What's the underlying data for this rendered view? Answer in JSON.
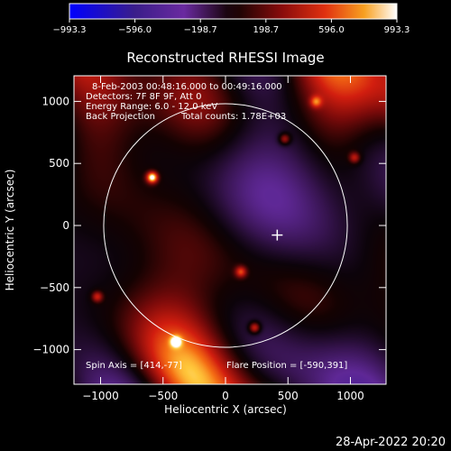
{
  "chart_data": {
    "type": "heatmap",
    "title": "Reconstructed RHESSI Image",
    "xlabel": "Heliocentric X (arcsec)",
    "ylabel": "Heliocentric Y (arcsec)",
    "xlim": [
      -1300,
      1300
    ],
    "ylim": [
      -1300,
      1300
    ],
    "x_ticks": [
      -1000,
      -500,
      0,
      500,
      1000
    ],
    "x_tick_labels": [
      "−1000",
      "−500",
      "0",
      "500",
      "1000"
    ],
    "y_ticks": [
      -1000,
      -500,
      0,
      500,
      1000
    ],
    "y_tick_labels": [
      "−1000",
      "−500",
      "0",
      "500",
      "1000"
    ],
    "colorbar": {
      "range": [
        -993.3,
        993.3
      ],
      "tick_values": [
        -993.3,
        -596.0,
        -198.7,
        198.7,
        596.0,
        993.3
      ],
      "tick_labels": [
        "−993.3",
        "−596.0",
        "−198.7",
        "198.7",
        "596.0",
        "993.3"
      ]
    },
    "annotations": [
      "8-Feb-2003 00:48:16.000 to 00:49:16.000",
      "Detectors: 7F 8F 9F, Att 0",
      "Energy Range: 6.0 - 12.0 keV",
      "Back Projection",
      "Total counts: 1.78E+03"
    ],
    "spin_axis_label": "Spin Axis = [414,-77]",
    "flare_position_label": "Flare Position = [-590,391]",
    "spin_axis": [
      414,
      -77
    ],
    "flare_position": [
      -590,
      391
    ],
    "solar_disk_center": [
      0,
      0
    ],
    "solar_disk_radius": 975,
    "bright_sources": [
      {
        "x": -590,
        "y": 391,
        "value": 993.3
      },
      {
        "x": 230,
        "y": -820,
        "value": 650
      },
      {
        "x": 120,
        "y": -370,
        "value": 560
      },
      {
        "x": 470,
        "y": 700,
        "value": 540
      },
      {
        "x": -1030,
        "y": -570,
        "value": 520
      },
      {
        "x": -400,
        "y": -930,
        "value": 500
      },
      {
        "x": 1030,
        "y": 550,
        "value": 480
      },
      {
        "x": 720,
        "y": 1000,
        "value": 460
      }
    ]
  },
  "footer": {
    "timestamp": "28-Apr-2022 20:20"
  },
  "colors": {
    "background": "#000000",
    "axes": "#ffffff",
    "colormap": [
      "#0000ff",
      "#3a1d8a",
      "#6a2aa0",
      "#1a0510",
      "#000000",
      "#5a0a0a",
      "#c01818",
      "#f07018",
      "#ffd040",
      "#ffffff"
    ]
  }
}
